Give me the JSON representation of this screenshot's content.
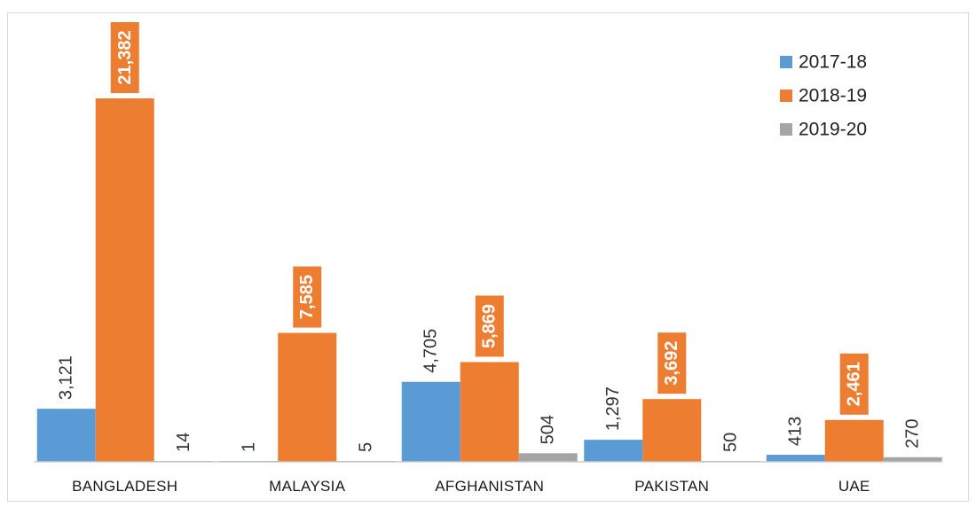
{
  "chart_data": {
    "type": "bar",
    "categories": [
      "BANGLADESH",
      "MALAYSIA",
      "AFGHANISTAN",
      "PAKISTAN",
      "UAE"
    ],
    "series": [
      {
        "name": "2017-18",
        "color": "#5b9bd5",
        "values": [
          3121,
          1,
          4705,
          1297,
          413
        ],
        "labels": [
          "3,121",
          "1",
          "4,705",
          "1,297",
          "413"
        ]
      },
      {
        "name": "2018-19",
        "color": "#ed7d31",
        "values": [
          21382,
          7585,
          5869,
          3692,
          2461
        ],
        "labels": [
          "21,382",
          "7,585",
          "5,869",
          "3,692",
          "2,461"
        ]
      },
      {
        "name": "2019-20",
        "color": "#a5a5a5",
        "values": [
          14,
          5,
          504,
          50,
          270
        ],
        "labels": [
          "14",
          "5",
          "504",
          "50",
          "270"
        ]
      }
    ],
    "title": "",
    "xlabel": "",
    "ylabel": "",
    "ylim": [
      0,
      21382
    ],
    "grid": false,
    "legend_position": "top-right"
  }
}
